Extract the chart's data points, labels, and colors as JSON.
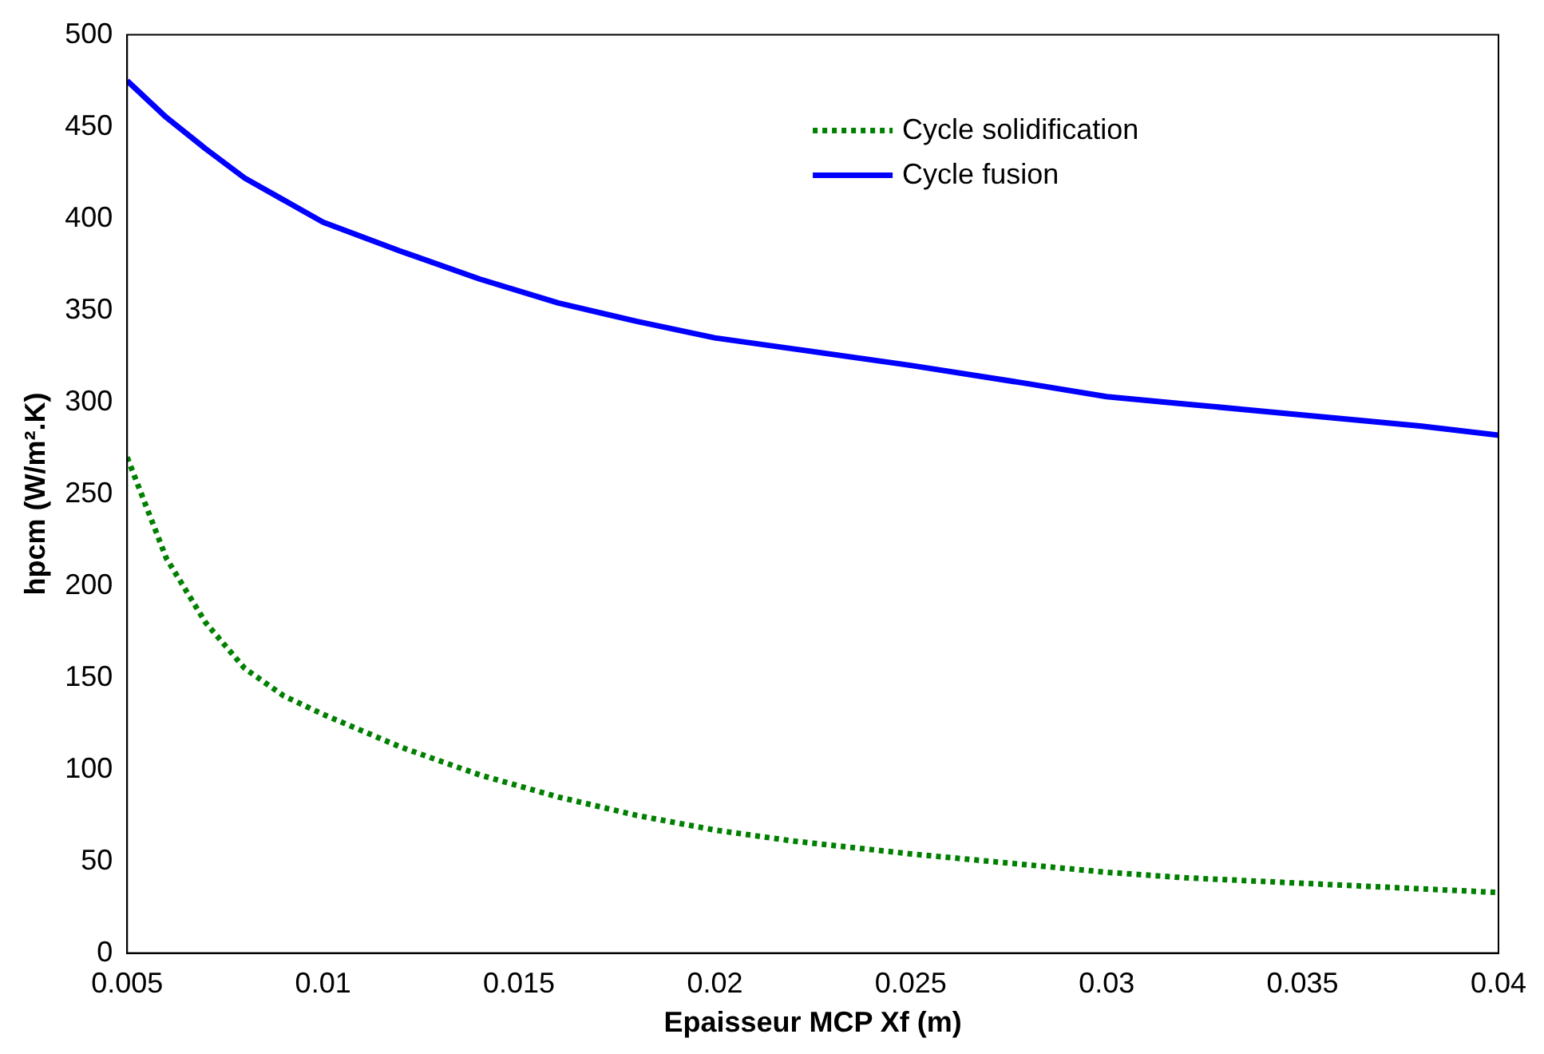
{
  "chart_data": {
    "type": "line",
    "xlabel": "Epaisseur MCP Xf (m)",
    "ylabel": "hpcm (W/m².K)",
    "x": [
      0.005,
      0.006,
      0.007,
      0.008,
      0.009,
      0.01,
      0.012,
      0.014,
      0.016,
      0.018,
      0.02,
      0.022,
      0.025,
      0.028,
      0.03,
      0.032,
      0.035,
      0.038,
      0.04
    ],
    "series": [
      {
        "name": "Cycle solidification",
        "color": "#008000",
        "line_style": "dotted",
        "values": [
          270,
          215,
          180,
          155,
          140,
          130,
          112,
          97,
          85,
          75,
          67,
          61,
          54,
          48,
          44,
          41,
          38,
          35,
          33
        ]
      },
      {
        "name": "Cycle fusion",
        "color": "#0000ff",
        "line_style": "solid",
        "values": [
          475,
          455,
          438,
          422,
          410,
          398,
          382,
          367,
          354,
          344,
          335,
          329,
          320,
          310,
          303,
          299,
          293,
          287,
          282
        ]
      }
    ],
    "xlim": [
      0.005,
      0.04
    ],
    "xticks": [
      0.005,
      0.01,
      0.015,
      0.02,
      0.025,
      0.03,
      0.035,
      0.04
    ],
    "ylim": [
      0,
      500
    ],
    "yticks": [
      0,
      50,
      100,
      150,
      200,
      250,
      300,
      350,
      400,
      450,
      500
    ],
    "grid": false,
    "legend": "top right",
    "marker": "none"
  }
}
